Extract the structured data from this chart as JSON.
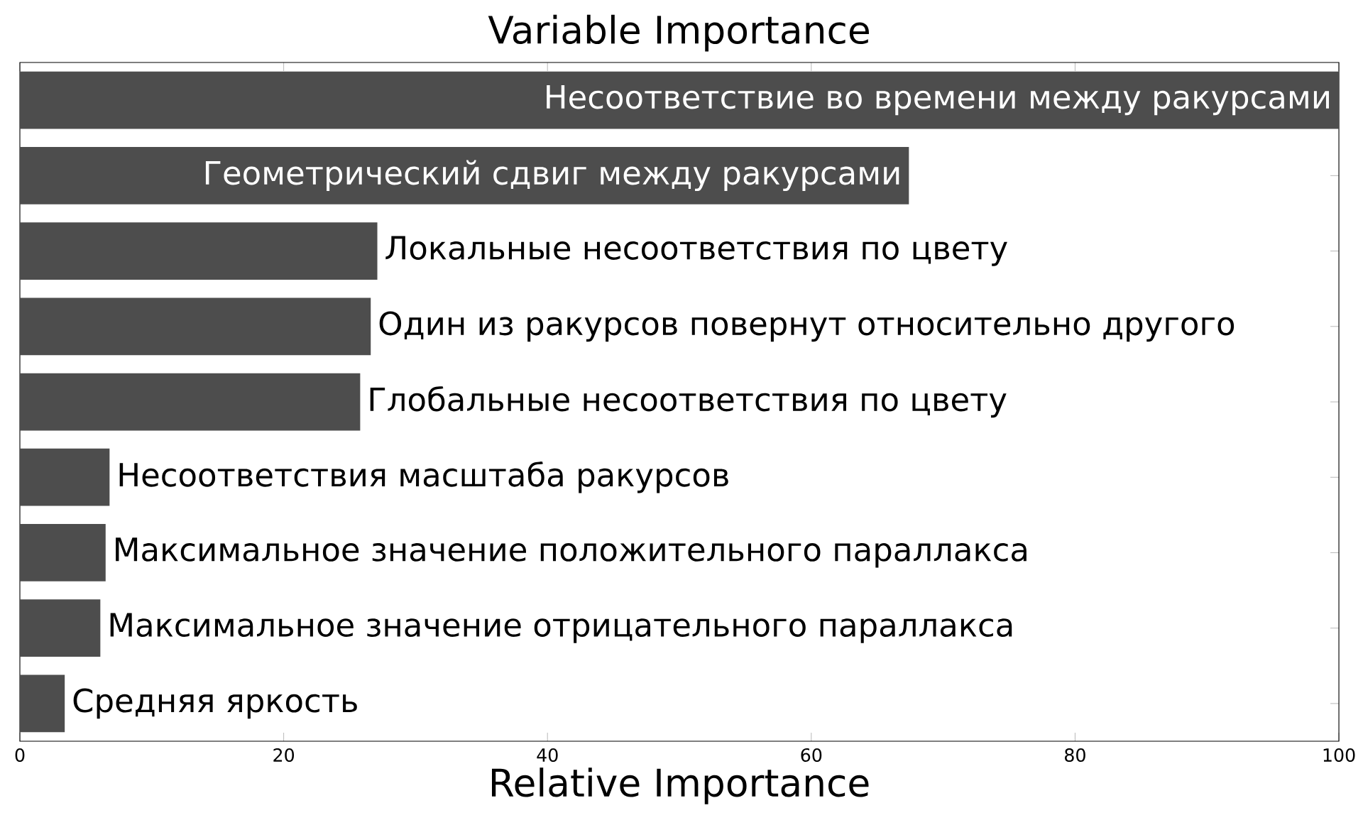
{
  "chart_data": {
    "type": "bar",
    "orientation": "horizontal",
    "title": "Variable Importance",
    "xlabel": "Relative Importance",
    "categories": [
      "Несоответствие во времени между ракурсами",
      "Геометрический сдвиг между ракурсами",
      "Локальные несоответствия по цвету",
      "Один из ракурсов повернут относительно другого",
      "Глобальные несоответствия по цвету",
      "Несоответствия масштаба ракурсов",
      "Максимальное значение положительного параллакса",
      "Максимальное значение отрицательного параллакса",
      "Средняя яркость"
    ],
    "values": [
      100,
      67.4,
      27.1,
      26.6,
      25.8,
      6.8,
      6.5,
      6.1,
      3.4
    ],
    "color": "#4d4d4d",
    "xlim": [
      0,
      100
    ],
    "xticks": [
      0,
      20,
      40,
      60,
      80,
      100
    ],
    "grid": false
  }
}
